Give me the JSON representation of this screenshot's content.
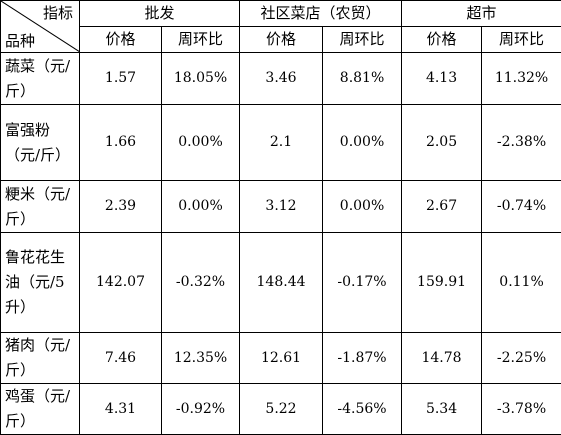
{
  "header": {
    "corner_top": "指标",
    "corner_bottom": "品种",
    "groups": [
      "批发",
      "社区菜店（农贸）",
      "超市"
    ],
    "subcols": {
      "price": "价格",
      "change": "周环比"
    }
  },
  "rows": [
    {
      "name": "蔬菜（元/斤）",
      "values": [
        "1.57",
        "18.05%",
        "3.46",
        "8.81%",
        "4.13",
        "11.32%"
      ]
    },
    {
      "name": "富强粉（元/斤）",
      "values": [
        "1.66",
        "0.00%",
        "2.1",
        "0.00%",
        "2.05",
        "-2.38%"
      ]
    },
    {
      "name": "粳米（元/斤）",
      "values": [
        "2.39",
        "0.00%",
        "3.12",
        "0.00%",
        "2.67",
        "-0.74%"
      ]
    },
    {
      "name": "鲁花花生油（元/5升）",
      "values": [
        "142.07",
        "-0.32%",
        "148.44",
        "-0.17%",
        "159.91",
        "0.11%"
      ]
    },
    {
      "name": "猪肉（元/斤）",
      "values": [
        "7.46",
        "12.35%",
        "12.61",
        "-1.87%",
        "14.78",
        "-2.25%"
      ]
    },
    {
      "name": "鸡蛋（元/斤）",
      "values": [
        "4.31",
        "-0.92%",
        "5.22",
        "-4.56%",
        "5.34",
        "-3.78%"
      ]
    }
  ]
}
